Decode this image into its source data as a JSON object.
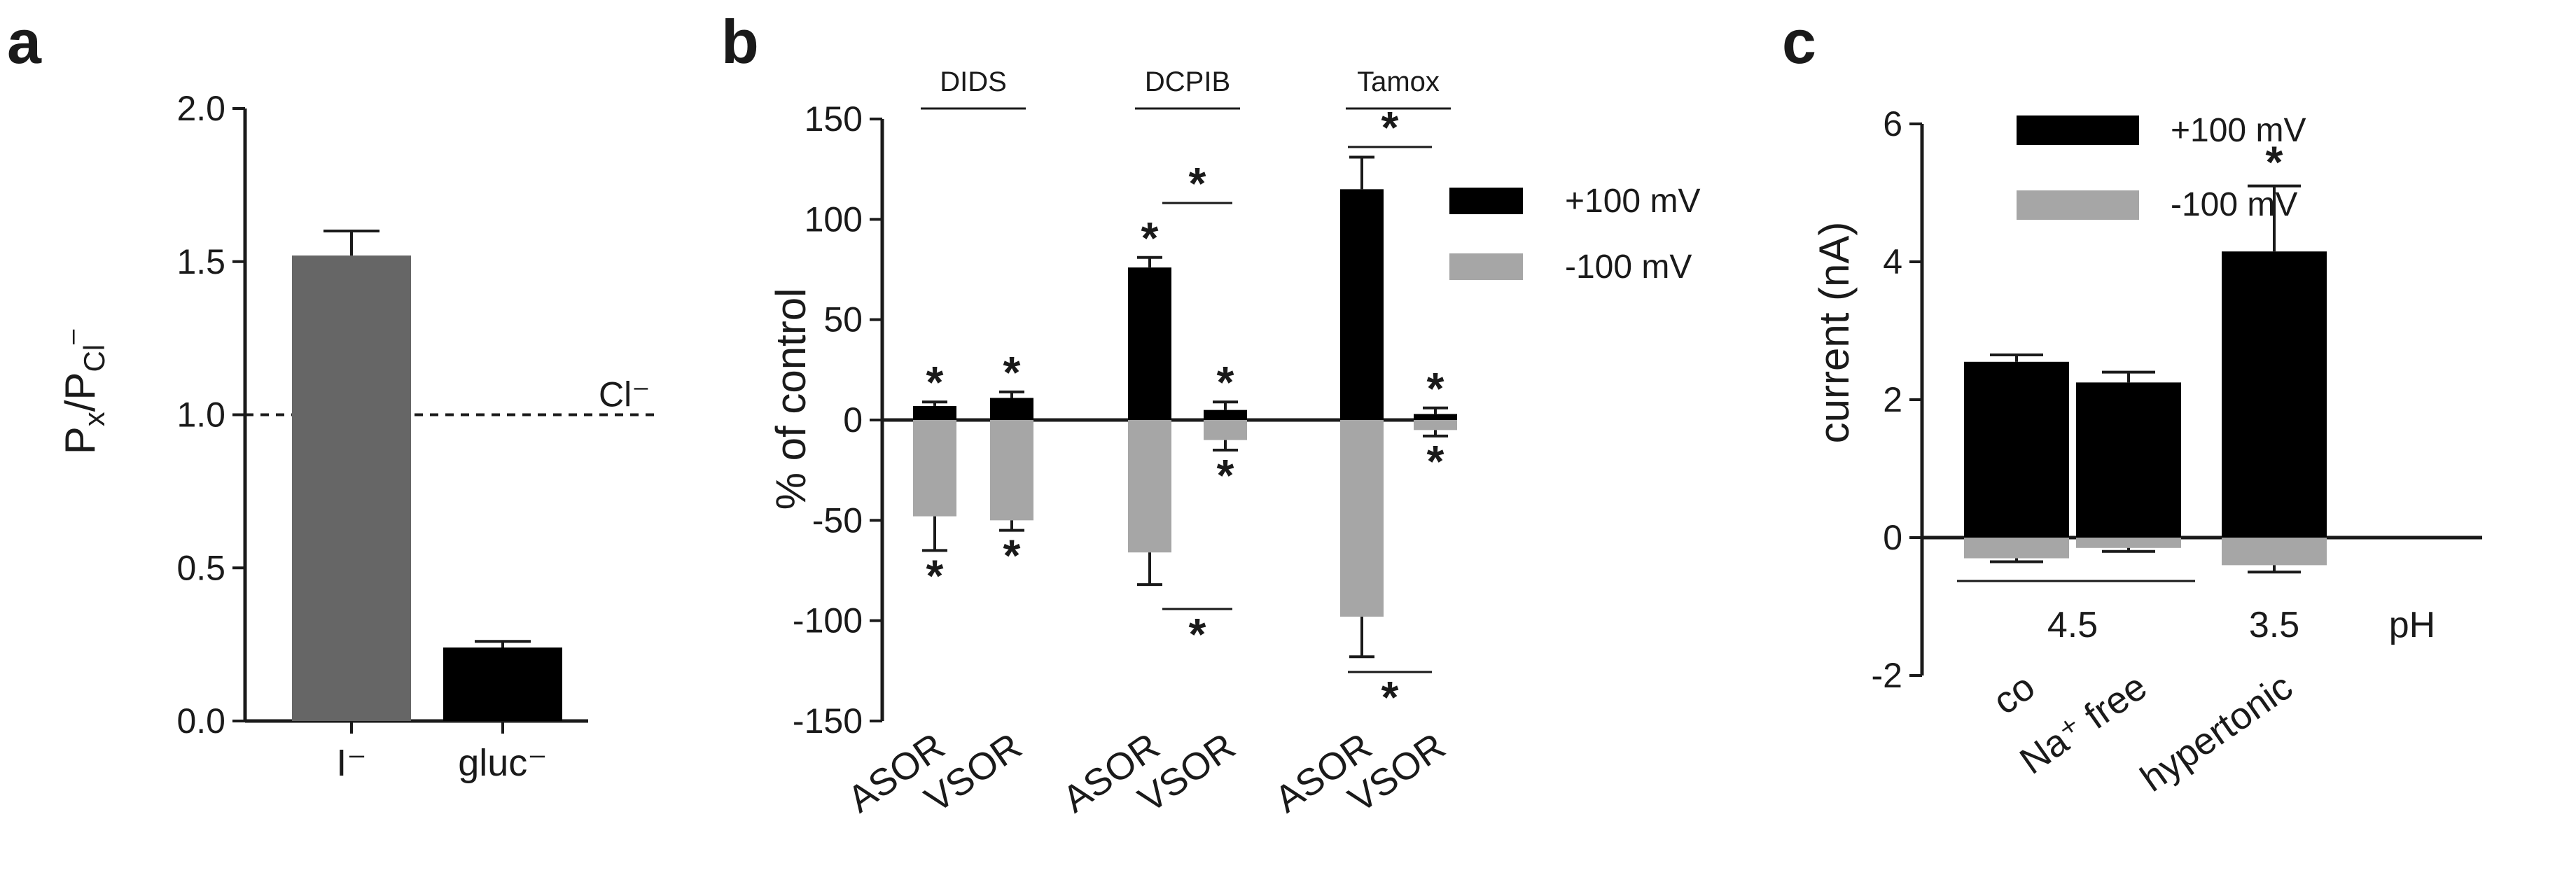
{
  "colors": {
    "black": "#000000",
    "dark_gray": "#666666",
    "light_gray": "#A6A6A6",
    "mid_gray": "#7F7F7F"
  },
  "chart_data": [
    {
      "panel": "a",
      "type": "bar",
      "categories": [
        "I⁻",
        "gluc⁻"
      ],
      "values": [
        1.52,
        0.24
      ],
      "errors": [
        0.08,
        0.02
      ],
      "bar_colors": [
        "#666666",
        "#000000"
      ],
      "ylabel": "Px/PCl⁻",
      "ylim": [
        0,
        2.0
      ],
      "yticks": [
        "0.0",
        "0.5",
        "1.0",
        "1.5",
        "2.0"
      ],
      "reference_line": {
        "y": 1.0,
        "label": "Cl⁻",
        "style": "dashed"
      }
    },
    {
      "panel": "b",
      "type": "bar",
      "groups": [
        "DIDS",
        "DCPIB",
        "Tamox"
      ],
      "categories": [
        "ASOR",
        "VSOR",
        "ASOR",
        "VSOR",
        "ASOR",
        "VSOR"
      ],
      "ylabel": "% of control",
      "ylim": [
        -150,
        150
      ],
      "yticks": [
        "-150",
        "-100",
        "-50",
        "0",
        "50",
        "100",
        "150"
      ],
      "series": [
        {
          "name": "+100 mV",
          "color": "#000000",
          "values": [
            7,
            11,
            76,
            5,
            115,
            3
          ],
          "errors": [
            2,
            3,
            5,
            4,
            16,
            3
          ],
          "stars": [
            "*",
            "*",
            "*",
            "*",
            "",
            "*"
          ]
        },
        {
          "name": "-100 mV",
          "color": "#A6A6A6",
          "values": [
            -48,
            -50,
            -66,
            -10,
            -98,
            -5
          ],
          "errors": [
            17,
            5,
            16,
            5,
            20,
            3
          ],
          "stars": [
            "*",
            "*",
            "",
            "*",
            "",
            "*"
          ]
        }
      ],
      "comparisons": [
        {
          "label": "*",
          "between": "DCPIB ASOR vs VSOR, +100 mV"
        },
        {
          "label": "*",
          "between": "Tamox ASOR vs VSOR, +100 mV"
        },
        {
          "label": "*",
          "between": "DCPIB ASOR vs VSOR, -100 mV"
        },
        {
          "label": "*",
          "between": "Tamox ASOR vs VSOR, -100 mV"
        }
      ],
      "legend": [
        "+100 mV",
        "-100 mV"
      ]
    },
    {
      "panel": "c",
      "type": "bar",
      "categories": [
        "co",
        "Na⁺ free",
        "hypertonic"
      ],
      "ylabel": "current (nA)",
      "ylim": [
        -2,
        6
      ],
      "yticks": [
        "-2",
        "0",
        "2",
        "4",
        "6"
      ],
      "series": [
        {
          "name": "+100 mV",
          "color": "#000000",
          "values": [
            2.55,
            2.25,
            4.15
          ],
          "errors": [
            0.1,
            0.15,
            0.95
          ],
          "stars": [
            "",
            "",
            "*"
          ]
        },
        {
          "name": "-100 mV",
          "color": "#A6A6A6",
          "values": [
            -0.3,
            -0.15,
            -0.4
          ],
          "errors": [
            0.05,
            0.05,
            0.1
          ]
        }
      ],
      "ph_labels": [
        "4.5",
        "3.5"
      ],
      "ph_title": "pH",
      "legend": [
        "+100 mV",
        "-100 mV"
      ]
    }
  ]
}
